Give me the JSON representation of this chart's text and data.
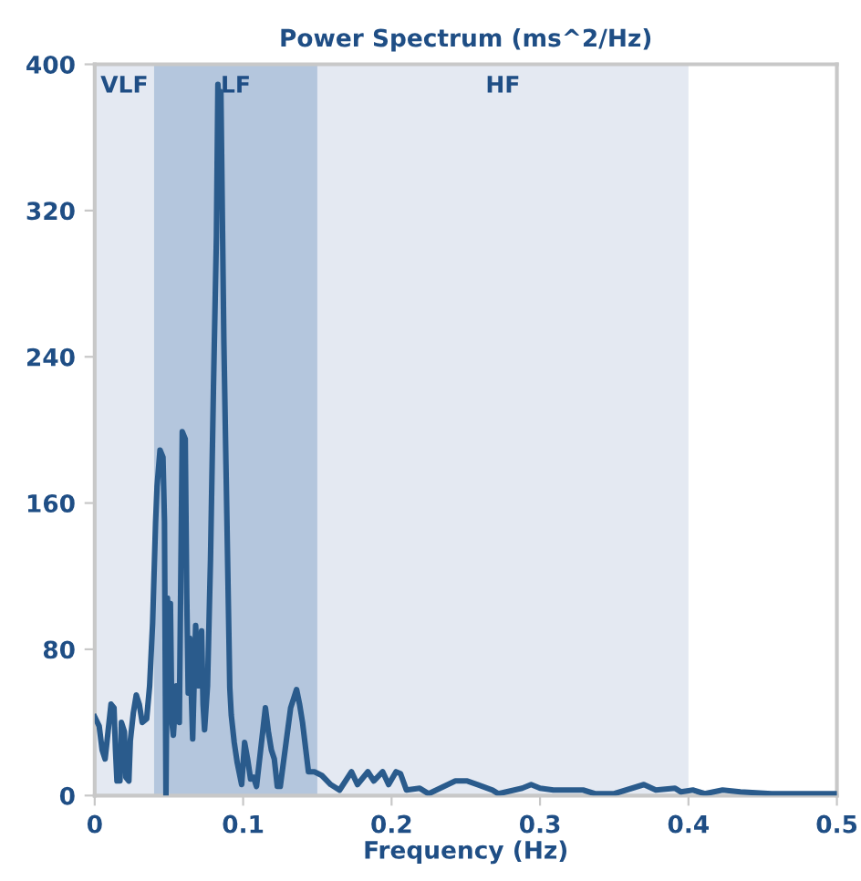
{
  "chart_data": {
    "type": "line",
    "title": "Power Spectrum (ms^2/Hz)",
    "xlabel": "Frequency (Hz)",
    "x": [
      0.0,
      0.003,
      0.005,
      0.007,
      0.009,
      0.011,
      0.013,
      0.014,
      0.015,
      0.017,
      0.018,
      0.02,
      0.021,
      0.023,
      0.024,
      0.026,
      0.028,
      0.03,
      0.032,
      0.035,
      0.037,
      0.039,
      0.041,
      0.042,
      0.044,
      0.046,
      0.047,
      0.048,
      0.049,
      0.05,
      0.051,
      0.052,
      0.053,
      0.055,
      0.057,
      0.059,
      0.061,
      0.062,
      0.063,
      0.064,
      0.066,
      0.068,
      0.07,
      0.072,
      0.073,
      0.074,
      0.076,
      0.078,
      0.08,
      0.082,
      0.083,
      0.084,
      0.085,
      0.087,
      0.089,
      0.091,
      0.092,
      0.094,
      0.096,
      0.099,
      0.101,
      0.103,
      0.105,
      0.107,
      0.109,
      0.115,
      0.117,
      0.119,
      0.121,
      0.123,
      0.125,
      0.132,
      0.136,
      0.138,
      0.14,
      0.144,
      0.148,
      0.153,
      0.159,
      0.165,
      0.173,
      0.177,
      0.184,
      0.188,
      0.194,
      0.198,
      0.203,
      0.206,
      0.21,
      0.219,
      0.225,
      0.243,
      0.251,
      0.258,
      0.268,
      0.272,
      0.288,
      0.294,
      0.3,
      0.309,
      0.329,
      0.337,
      0.35,
      0.358,
      0.37,
      0.378,
      0.391,
      0.395,
      0.403,
      0.411,
      0.423,
      0.435,
      0.456,
      0.5
    ],
    "series": [
      {
        "color": "#2a5b8c",
        "values": [
          43,
          38,
          25,
          20,
          35,
          50,
          48,
          25,
          8,
          8,
          40,
          35,
          10,
          8,
          30,
          45,
          55,
          50,
          40,
          42,
          60,
          94,
          149,
          169,
          189,
          185,
          150,
          0,
          108,
          60,
          105,
          40,
          33,
          60,
          40,
          199,
          195,
          110,
          56,
          86,
          31,
          93,
          60,
          90,
          50,
          36,
          60,
          129,
          223,
          306,
          389,
          370,
          385,
          249,
          154,
          59,
          44,
          29,
          18,
          6,
          29,
          20,
          9,
          10,
          5,
          48,
          35,
          25,
          20,
          5,
          5,
          48,
          58,
          50,
          40,
          13,
          13,
          11,
          6,
          3,
          13,
          6,
          13,
          8,
          13,
          6,
          13,
          12,
          3,
          4,
          1,
          8,
          8,
          6,
          3,
          1,
          4,
          6,
          4,
          3,
          3,
          1,
          1,
          3,
          6,
          3,
          4,
          2,
          3,
          1,
          3,
          2,
          1,
          1
        ]
      }
    ],
    "xlim": [
      0,
      0.5
    ],
    "ylim": [
      0,
      400
    ],
    "xticks": [
      0,
      0.1,
      0.2,
      0.3,
      0.4,
      0.5
    ],
    "yticks": [
      0,
      80,
      160,
      240,
      320,
      400
    ],
    "bands": [
      {
        "axis": "x",
        "from": 0,
        "to": 0.04,
        "label": "VLF",
        "color": "#e4e9f2"
      },
      {
        "axis": "x",
        "from": 0.04,
        "to": 0.15,
        "label": "LF",
        "color": "#b4c6dd"
      },
      {
        "axis": "x",
        "from": 0.15,
        "to": 0.4,
        "label": "HF",
        "color": "#e4e9f2"
      }
    ],
    "grid": false,
    "marker": "none",
    "line_style": "solid"
  }
}
